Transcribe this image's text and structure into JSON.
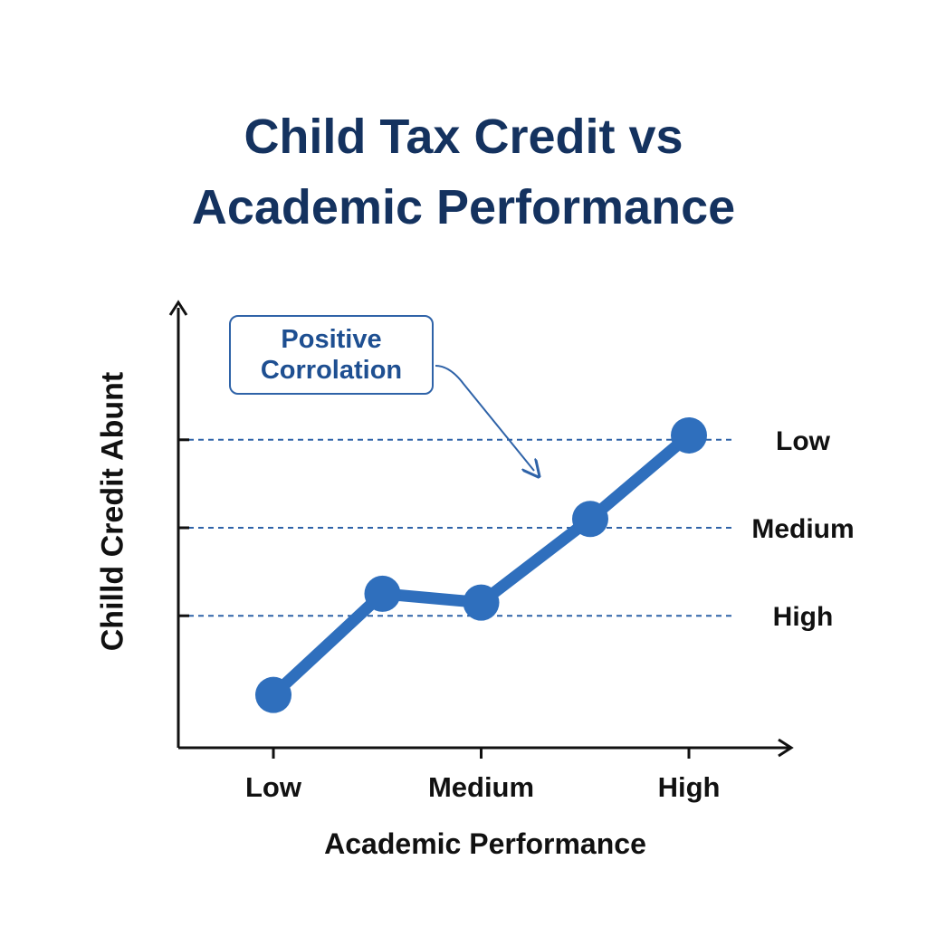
{
  "chart_data": {
    "type": "line",
    "title": [
      "Child Tax Credit vs",
      "Academic Performance"
    ],
    "xlabel": "Academic Performance",
    "ylabel": "Chilld Credit Abunt",
    "x_tick_labels": [
      "Low",
      "Medium",
      "High"
    ],
    "x_range": [
      0,
      4
    ],
    "y_range": [
      0,
      5
    ],
    "reference_lines": [
      {
        "label": "Low",
        "y": 3.5
      },
      {
        "label": "Medium",
        "y": 2.5
      },
      {
        "label": "High",
        "y": 1.5
      }
    ],
    "annotation": [
      "Positive",
      "Corrolation"
    ],
    "points": [
      {
        "x": 0,
        "y": 0.6
      },
      {
        "x": 1.05,
        "y": 1.75
      },
      {
        "x": 2,
        "y": 1.65
      },
      {
        "x": 3.05,
        "y": 2.6
      },
      {
        "x": 4,
        "y": 3.55
      }
    ],
    "line_color": "#2f6fbd",
    "grid": false
  }
}
